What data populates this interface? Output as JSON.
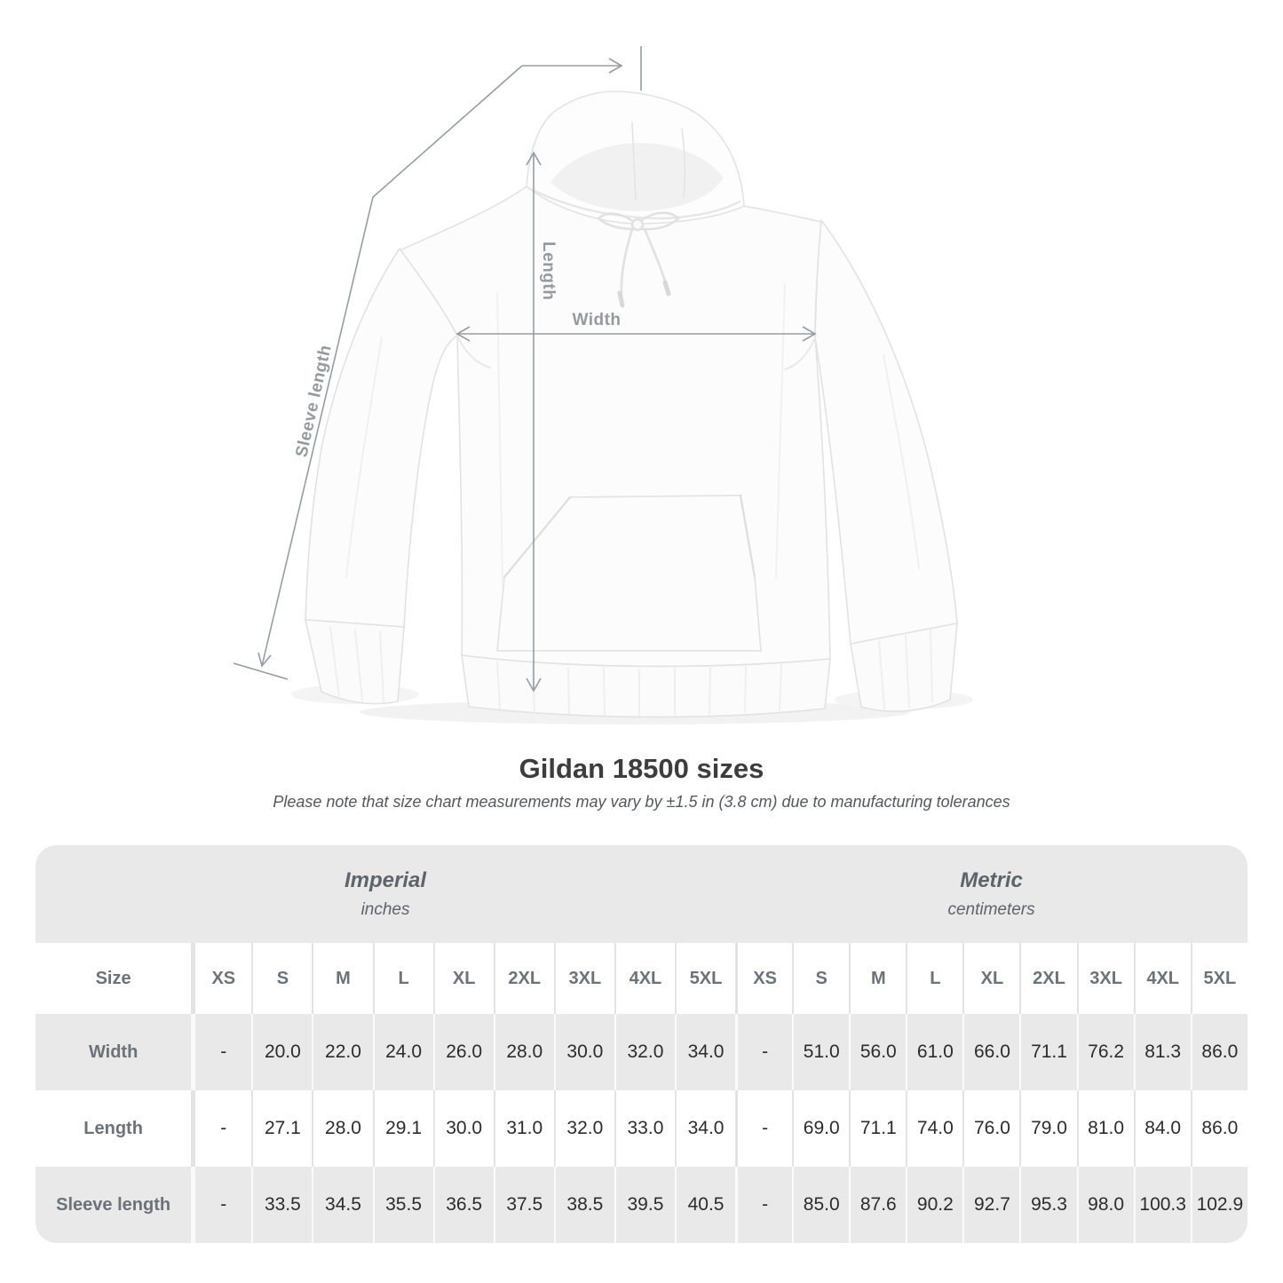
{
  "diagram": {
    "length_label": "Length",
    "width_label": "Width",
    "sleeve_label": "Sleeve length"
  },
  "title": "Gildan 18500 sizes",
  "subtitle": "Please note that size chart measurements may vary by ±1.5 in (3.8 cm) due to manufacturing tolerances",
  "chart_data": {
    "type": "table",
    "title": "Gildan 18500 sizes",
    "corner_header": "Size",
    "groups": [
      {
        "label": "Imperial",
        "unit": "inches"
      },
      {
        "label": "Metric",
        "unit": "centimeters"
      }
    ],
    "sizes": [
      "XS",
      "S",
      "M",
      "L",
      "XL",
      "2XL",
      "3XL",
      "4XL",
      "5XL"
    ],
    "rows": [
      {
        "label": "Width",
        "imperial": [
          "-",
          "20.0",
          "22.0",
          "24.0",
          "26.0",
          "28.0",
          "30.0",
          "32.0",
          "34.0"
        ],
        "metric": [
          "-",
          "51.0",
          "56.0",
          "61.0",
          "66.0",
          "71.1",
          "76.2",
          "81.3",
          "86.0"
        ]
      },
      {
        "label": "Length",
        "imperial": [
          "-",
          "27.1",
          "28.0",
          "29.1",
          "30.0",
          "31.0",
          "32.0",
          "33.0",
          "34.0"
        ],
        "metric": [
          "-",
          "69.0",
          "71.1",
          "74.0",
          "76.0",
          "79.0",
          "81.0",
          "84.0",
          "86.0"
        ]
      },
      {
        "label": "Sleeve length",
        "imperial": [
          "-",
          "33.5",
          "34.5",
          "35.5",
          "36.5",
          "37.5",
          "38.5",
          "39.5",
          "40.5"
        ],
        "metric": [
          "-",
          "85.0",
          "87.6",
          "90.2",
          "92.7",
          "95.3",
          "98.0",
          "100.3",
          "102.9"
        ]
      }
    ]
  },
  "colors": {
    "band_gray": "#e9e9e9",
    "header_text": "#6b7378",
    "value_text": "#2c2c2c",
    "title_text": "#3d3d3d",
    "subtitle_text": "#54585b",
    "measure_line": "#969da2"
  }
}
